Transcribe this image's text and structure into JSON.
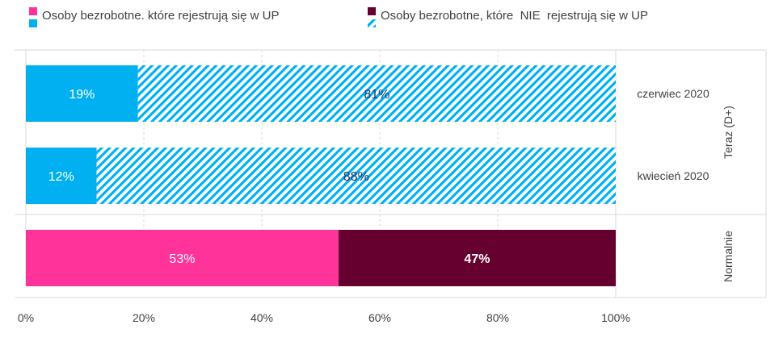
{
  "chart_data": {
    "type": "bar",
    "orientation": "horizontal",
    "stacked": true,
    "legend": [
      {
        "name": "Osoby bezrobotne. które rejestrują się w UP",
        "color": "#ff3399",
        "color_alt": "#00b0f0"
      },
      {
        "name": "Osoby bezrobotne, które  NIE  rejestrują się w UP",
        "color": "#66002e",
        "color_alt_pattern": "hatched-#00b0f0"
      }
    ],
    "legend_position": "top",
    "groups": [
      {
        "label": "Teraz (D+)",
        "rows": [
          "czerwiec 2020",
          "kwiecień 2020"
        ]
      },
      {
        "label": "Normalnie",
        "rows": [
          ""
        ]
      }
    ],
    "rows": [
      {
        "category": "czerwiec 2020",
        "values": [
          19,
          81
        ],
        "labels": [
          "19%",
          "81%"
        ],
        "colors": [
          "#00b0f0",
          "hatch"
        ]
      },
      {
        "category": "kwiecień 2020",
        "values": [
          12,
          88
        ],
        "labels": [
          "12%",
          "88%"
        ],
        "colors": [
          "#00b0f0",
          "hatch"
        ]
      },
      {
        "category": "",
        "values": [
          53,
          47
        ],
        "labels": [
          "53%",
          "47%"
        ],
        "colors": [
          "#ff3399",
          "#66002e"
        ]
      }
    ],
    "x_ticks": [
      "0%",
      "20%",
      "40%",
      "60%",
      "80%",
      "100%"
    ],
    "xlim": [
      0,
      100
    ],
    "grid": "vertical-dashed"
  }
}
